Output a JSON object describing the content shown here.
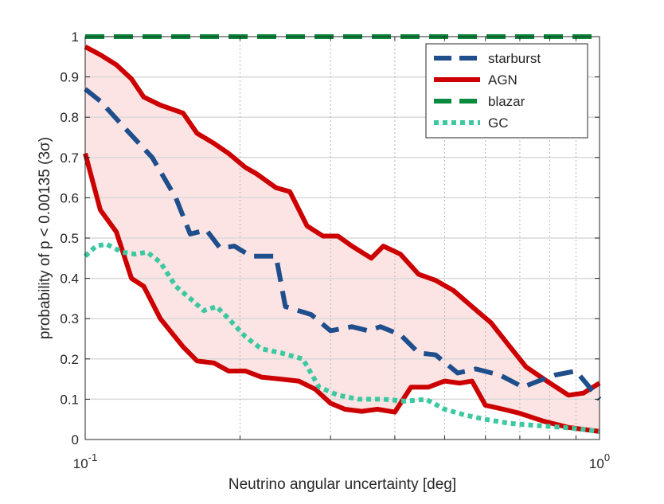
{
  "chart_data": {
    "type": "line",
    "xscale": "log",
    "xlabel": "Neutrino angular uncertainty [deg]",
    "ylabel": "probability of p < 0.00135  (3σ)",
    "xlim": [
      0.1,
      1.0
    ],
    "ylim": [
      0,
      1
    ],
    "x_ticks": [
      {
        "value": 0.1,
        "base": "10",
        "exp": "-1"
      },
      {
        "value": 1.0,
        "base": "10",
        "exp": "0"
      }
    ],
    "y_ticks": [
      {
        "value": 0,
        "label": "0"
      },
      {
        "value": 0.1,
        "label": "0.1"
      },
      {
        "value": 0.2,
        "label": "0.2"
      },
      {
        "value": 0.3,
        "label": "0.3"
      },
      {
        "value": 0.4,
        "label": "0.4"
      },
      {
        "value": 0.5,
        "label": "0.5"
      },
      {
        "value": 0.6,
        "label": "0.6"
      },
      {
        "value": 0.7,
        "label": "0.7"
      },
      {
        "value": 0.8,
        "label": "0.8"
      },
      {
        "value": 0.9,
        "label": "0.9"
      },
      {
        "value": 1,
        "label": "1"
      }
    ],
    "grid": true,
    "legend_position": "top-right",
    "band": {
      "color": "#fce4e4",
      "upper": [
        [
          0.1,
          0.975
        ],
        [
          0.107,
          0.955
        ],
        [
          0.115,
          0.93
        ],
        [
          0.123,
          0.895
        ],
        [
          0.13,
          0.85
        ],
        [
          0.14,
          0.83
        ],
        [
          0.155,
          0.81
        ],
        [
          0.165,
          0.76
        ],
        [
          0.178,
          0.735
        ],
        [
          0.19,
          0.71
        ],
        [
          0.205,
          0.675
        ],
        [
          0.215,
          0.66
        ],
        [
          0.235,
          0.625
        ],
        [
          0.25,
          0.615
        ],
        [
          0.27,
          0.53
        ],
        [
          0.29,
          0.505
        ],
        [
          0.31,
          0.505
        ],
        [
          0.33,
          0.48
        ],
        [
          0.36,
          0.45
        ],
        [
          0.38,
          0.48
        ],
        [
          0.41,
          0.46
        ],
        [
          0.445,
          0.41
        ],
        [
          0.48,
          0.395
        ],
        [
          0.52,
          0.37
        ],
        [
          0.565,
          0.33
        ],
        [
          0.615,
          0.29
        ],
        [
          0.67,
          0.23
        ],
        [
          0.72,
          0.18
        ],
        [
          0.79,
          0.145
        ],
        [
          0.87,
          0.11
        ],
        [
          0.93,
          0.115
        ],
        [
          1.0,
          0.14
        ]
      ],
      "lower": [
        [
          0.1,
          0.71
        ],
        [
          0.107,
          0.57
        ],
        [
          0.115,
          0.515
        ],
        [
          0.123,
          0.4
        ],
        [
          0.13,
          0.38
        ],
        [
          0.14,
          0.3
        ],
        [
          0.155,
          0.23
        ],
        [
          0.165,
          0.195
        ],
        [
          0.178,
          0.19
        ],
        [
          0.19,
          0.17
        ],
        [
          0.205,
          0.17
        ],
        [
          0.22,
          0.155
        ],
        [
          0.24,
          0.15
        ],
        [
          0.26,
          0.145
        ],
        [
          0.28,
          0.125
        ],
        [
          0.3,
          0.09
        ],
        [
          0.32,
          0.075
        ],
        [
          0.345,
          0.07
        ],
        [
          0.37,
          0.075
        ],
        [
          0.4,
          0.068
        ],
        [
          0.43,
          0.13
        ],
        [
          0.465,
          0.13
        ],
        [
          0.5,
          0.145
        ],
        [
          0.535,
          0.14
        ],
        [
          0.565,
          0.145
        ],
        [
          0.6,
          0.085
        ],
        [
          0.65,
          0.075
        ],
        [
          0.7,
          0.065
        ],
        [
          0.78,
          0.045
        ],
        [
          0.87,
          0.03
        ],
        [
          1.0,
          0.02
        ]
      ]
    },
    "series": [
      {
        "name": "starburst",
        "color": "#1f4e8c",
        "style": "dashed",
        "points": [
          [
            0.1,
            0.87
          ],
          [
            0.107,
            0.84
          ],
          [
            0.12,
            0.77
          ],
          [
            0.135,
            0.7
          ],
          [
            0.15,
            0.6
          ],
          [
            0.16,
            0.51
          ],
          [
            0.172,
            0.52
          ],
          [
            0.183,
            0.475
          ],
          [
            0.195,
            0.48
          ],
          [
            0.21,
            0.455
          ],
          [
            0.235,
            0.455
          ],
          [
            0.245,
            0.33
          ],
          [
            0.275,
            0.31
          ],
          [
            0.3,
            0.27
          ],
          [
            0.33,
            0.28
          ],
          [
            0.355,
            0.27
          ],
          [
            0.375,
            0.28
          ],
          [
            0.41,
            0.26
          ],
          [
            0.445,
            0.215
          ],
          [
            0.48,
            0.21
          ],
          [
            0.53,
            0.165
          ],
          [
            0.575,
            0.175
          ],
          [
            0.64,
            0.16
          ],
          [
            0.71,
            0.13
          ],
          [
            0.76,
            0.145
          ],
          [
            0.82,
            0.16
          ],
          [
            0.9,
            0.17
          ],
          [
            1.0,
            0.1
          ]
        ]
      },
      {
        "name": "AGN",
        "color": "#cc0000",
        "style": "solid",
        "points": []
      },
      {
        "name": "blazar",
        "color": "#0a8a3c",
        "style": "dashed",
        "points": [
          [
            0.1,
            1.0
          ],
          [
            1.0,
            1.0
          ]
        ]
      },
      {
        "name": "GC",
        "color": "#3cc8a0",
        "style": "dotted",
        "points": [
          [
            0.1,
            0.455
          ],
          [
            0.105,
            0.48
          ],
          [
            0.11,
            0.485
          ],
          [
            0.118,
            0.465
          ],
          [
            0.125,
            0.46
          ],
          [
            0.132,
            0.465
          ],
          [
            0.14,
            0.44
          ],
          [
            0.15,
            0.38
          ],
          [
            0.16,
            0.35
          ],
          [
            0.17,
            0.32
          ],
          [
            0.18,
            0.33
          ],
          [
            0.19,
            0.3
          ],
          [
            0.205,
            0.255
          ],
          [
            0.22,
            0.225
          ],
          [
            0.24,
            0.215
          ],
          [
            0.265,
            0.2
          ],
          [
            0.285,
            0.13
          ],
          [
            0.31,
            0.11
          ],
          [
            0.34,
            0.1
          ],
          [
            0.38,
            0.1
          ],
          [
            0.42,
            0.095
          ],
          [
            0.46,
            0.1
          ],
          [
            0.5,
            0.075
          ],
          [
            0.55,
            0.06
          ],
          [
            0.6,
            0.05
          ],
          [
            0.67,
            0.04
          ],
          [
            0.75,
            0.035
          ],
          [
            0.85,
            0.03
          ],
          [
            0.93,
            0.025
          ],
          [
            1.0,
            0.02
          ]
        ]
      }
    ]
  }
}
